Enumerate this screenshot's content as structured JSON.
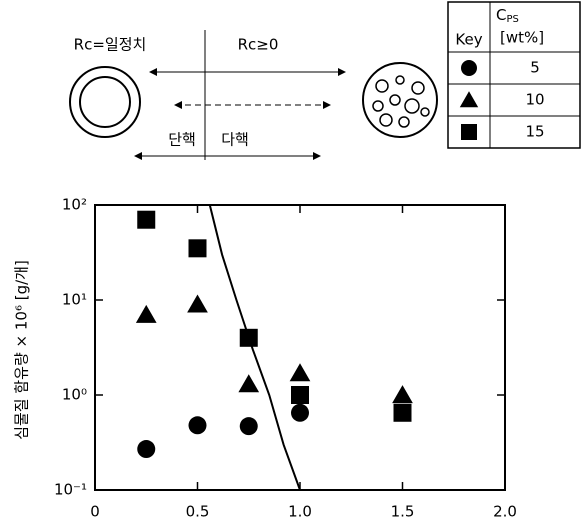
{
  "chart_data": {
    "type": "scatter",
    "y_label": "심물질 함유량 × 10⁶ [g/개]",
    "ylog": true,
    "xlim": [
      0,
      2
    ],
    "xticks": [
      0,
      0.5,
      {
        "value": 1,
        "label": "1.0"
      },
      1.5,
      {
        "value": 2,
        "label": "2.0"
      }
    ],
    "ylim": [
      0.1,
      100
    ],
    "yticks": [
      {
        "value": 100,
        "label": "10²"
      },
      {
        "value": 10,
        "label": "10¹"
      },
      {
        "value": 1,
        "label": "10⁰"
      },
      {
        "value": 0.1,
        "label": "10⁻¹"
      }
    ],
    "legend_key_label": "Key",
    "legend_title": {
      "main": "C",
      "sub": "PS",
      "unit": "[wt%]"
    },
    "series": [
      {
        "name": "5",
        "marker": "circle",
        "color": "#000000",
        "x": [
          0.25,
          0.5,
          0.75,
          1.0
        ],
        "values": [
          0.27,
          0.48,
          0.47,
          0.65
        ]
      },
      {
        "name": "10",
        "marker": "triangle",
        "color": "#000000",
        "x": [
          0.25,
          0.5,
          0.75,
          1.0,
          1.5
        ],
        "values": [
          7,
          9,
          1.3,
          1.7,
          1.0
        ]
      },
      {
        "name": "15",
        "marker": "square",
        "color": "#000000",
        "x": [
          0.25,
          0.5,
          0.75,
          1.0,
          1.5
        ],
        "values": [
          70,
          35,
          4,
          1.0,
          0.65
        ]
      }
    ],
    "curve": {
      "x": [
        0.56,
        0.62,
        0.69,
        0.77,
        0.85,
        0.92,
        1.0
      ],
      "values": [
        100,
        30,
        10,
        3,
        1,
        0.3,
        0.1
      ],
      "color": "#000000"
    },
    "annotations": {
      "constant": "Rc=일정치",
      "nonneg": "Rc≥0",
      "mono": "단핵",
      "multi": "다핵"
    }
  }
}
